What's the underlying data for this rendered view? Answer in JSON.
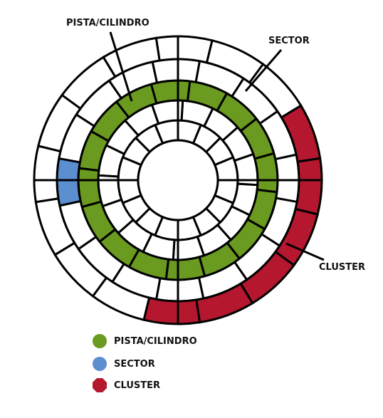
{
  "labels": {
    "track": "PISTA/CILINDRO",
    "sector": "SECTOR",
    "cluster": "CLUSTER"
  },
  "colors": {
    "track": "#6a9a1f",
    "sector": "#5b8fd0",
    "cluster": "#b5172e",
    "line": "#000000",
    "background": "#ffffff"
  },
  "legend": [
    {
      "label": "PISTA/CILINDRO",
      "color": "#6a9a1f",
      "shape": "circle"
    },
    {
      "label": "SECTOR",
      "color": "#5b8fd0",
      "shape": "circle"
    },
    {
      "label": "CLUSTER",
      "color": "#b5172e",
      "shape": "octagon"
    }
  ],
  "disk": {
    "track_count": 5,
    "sector_count": 16,
    "highlighted_track": 3,
    "highlighted_sector": {
      "track": 4,
      "sector": 12
    },
    "cluster": {
      "track": 5,
      "sectors": [
        0,
        1,
        2,
        3,
        4,
        5
      ]
    }
  }
}
